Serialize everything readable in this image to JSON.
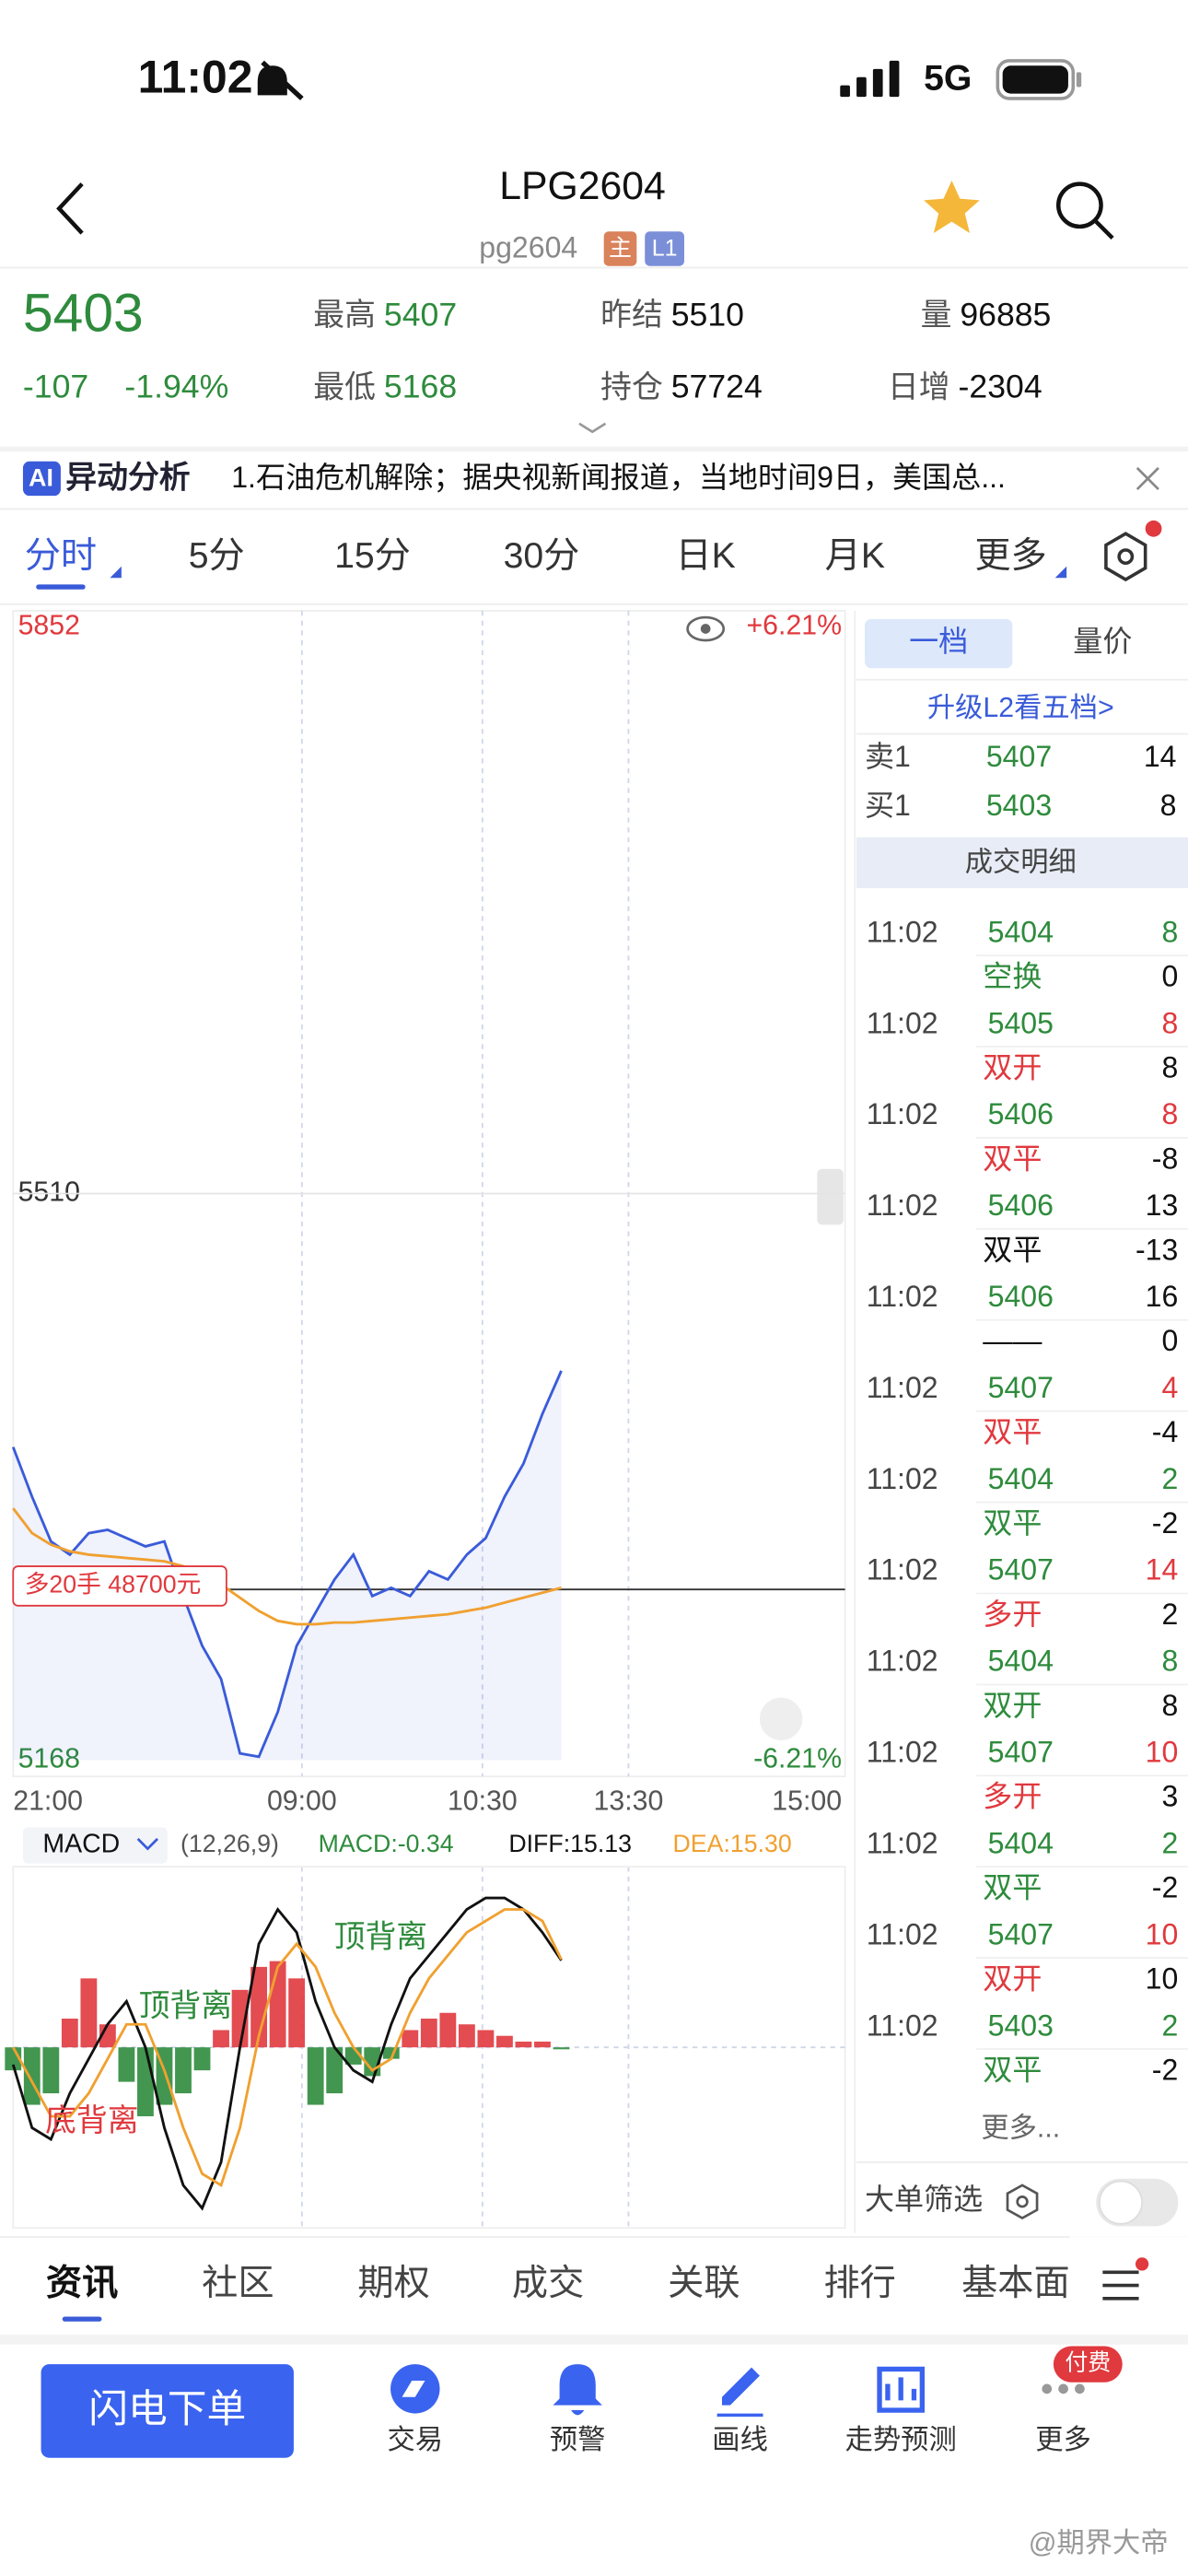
{
  "status_bar": {
    "time": "11:02",
    "network": "5G"
  },
  "header": {
    "title": "LPG2604",
    "code": "pg2604",
    "tags": [
      "主",
      "L1"
    ]
  },
  "quote": {
    "price": "5403",
    "change": "-107",
    "change_pct": "-1.94%",
    "color": "#2e8b3c",
    "stats": [
      {
        "label": "最高",
        "value": "5407",
        "color": "#2e8b3c"
      },
      {
        "label": "昨结",
        "value": "5510",
        "color": "#111111"
      },
      {
        "label": "量",
        "value": "96885",
        "color": "#111111"
      },
      {
        "label": "最低",
        "value": "5168",
        "color": "#2e8b3c"
      },
      {
        "label": "持仓",
        "value": "57724",
        "color": "#111111"
      },
      {
        "label": "日增",
        "value": "-2304",
        "color": "#111111"
      }
    ]
  },
  "news": {
    "badge": "AI",
    "label": "异动分析",
    "text": "1.石油危机解除；据央视新闻报道，当地时间9日，美国总..."
  },
  "period_tabs": {
    "items": [
      "分时",
      "5分",
      "15分",
      "30分",
      "日K",
      "月K",
      "更多"
    ],
    "selected": 0
  },
  "intraday": {
    "type": "line",
    "ylim": [
      5168,
      5852
    ],
    "yticks": [
      5168,
      5510,
      5852
    ],
    "y2lim": [
      -6.21,
      6.21
    ],
    "y2ticks": [
      {
        "value": -6.21,
        "label": "-6.21%"
      },
      {
        "value": 6.21,
        "label": "+6.21%"
      }
    ],
    "x_labels": [
      "21:00",
      "09:00",
      "10:30",
      "13:30",
      "15:00"
    ],
    "series": [
      {
        "color": "#3a5bd9",
        "values": [
          5357,
          5327,
          5300,
          5292,
          5305,
          5307,
          5302,
          5297,
          5300,
          5267,
          5237,
          5217,
          5172,
          5170,
          5197,
          5237,
          5257,
          5277,
          5292,
          5267,
          5272,
          5267,
          5282,
          5277,
          5292,
          5302,
          5327,
          5347,
          5377,
          5403
        ]
      },
      {
        "color": "#f0a030",
        "values": [
          5320,
          5305,
          5298,
          5294,
          5292,
          5291,
          5290,
          5289,
          5288,
          5285,
          5280,
          5274,
          5266,
          5258,
          5252,
          5250,
          5250,
          5251,
          5251,
          5252,
          5253,
          5254,
          5255,
          5256,
          5258,
          5260,
          5263,
          5266,
          5269,
          5272
        ]
      }
    ],
    "position": {
      "label": "多20手 48700元",
      "value": 5271
    }
  },
  "macd": {
    "type": "bar",
    "name": "MACD",
    "params": "(12,26,9)",
    "macd_label": "MACD:-0.34",
    "diff_label": "DIFF:15.13",
    "dea_label": "DEA:15.30",
    "ylim": [
      -30,
      30
    ],
    "values": [
      -4,
      -10,
      -8,
      5,
      12,
      4,
      -6,
      -12,
      -10,
      -8,
      -4,
      3,
      10,
      14,
      15,
      12,
      -10,
      -8,
      -3,
      -5,
      -2,
      3,
      5,
      6,
      4,
      3,
      2,
      1,
      1,
      -0.34
    ],
    "series": [
      {
        "color": "#111111",
        "values": [
          -3,
          -14,
          -16,
          -8,
          -2,
          4,
          8,
          0,
          -14,
          -24,
          -28,
          -20,
          0,
          18,
          24,
          20,
          8,
          0,
          -4,
          -6,
          4,
          12,
          16,
          20,
          24,
          26,
          26,
          24,
          20,
          15.13
        ]
      },
      {
        "color": "#f0a030",
        "values": [
          0,
          -6,
          -12,
          -12,
          -8,
          -2,
          4,
          4,
          -4,
          -14,
          -22,
          -24,
          -14,
          2,
          14,
          18,
          14,
          6,
          0,
          -4,
          -2,
          6,
          12,
          16,
          20,
          22,
          24,
          24,
          22,
          15.3
        ]
      }
    ],
    "annotations": [
      "顶背离",
      "顶背离",
      "底背离"
    ]
  },
  "orderbook": {
    "tabs": [
      "一档",
      "量价"
    ],
    "upgrade": "升级L2看五档>",
    "levels": [
      {
        "side": "卖1",
        "price": "5407",
        "volume": "14"
      },
      {
        "side": "买1",
        "price": "5403",
        "volume": "8"
      }
    ],
    "detail_title": "成交明细",
    "trades": [
      {
        "time": "11:02",
        "price": "5404",
        "vol": "8",
        "type": "空换",
        "chg": "0",
        "color": "#2e8b3c"
      },
      {
        "time": "11:02",
        "price": "5405",
        "vol": "8",
        "type": "双开",
        "chg": "8",
        "color": "#e0393e"
      },
      {
        "time": "11:02",
        "price": "5406",
        "vol": "8",
        "type": "双平",
        "chg": "-8",
        "color": "#e0393e"
      },
      {
        "time": "11:02",
        "price": "5406",
        "vol": "13",
        "type": "双平",
        "chg": "-13",
        "color": "#111111"
      },
      {
        "time": "11:02",
        "price": "5406",
        "vol": "16",
        "type": "——",
        "chg": "0",
        "color": "#111111"
      },
      {
        "time": "11:02",
        "price": "5407",
        "vol": "4",
        "type": "双平",
        "chg": "-4",
        "color": "#e0393e"
      },
      {
        "time": "11:02",
        "price": "5404",
        "vol": "2",
        "type": "双平",
        "chg": "-2",
        "color": "#2e8b3c"
      },
      {
        "time": "11:02",
        "price": "5407",
        "vol": "14",
        "type": "多开",
        "chg": "2",
        "color": "#e0393e"
      },
      {
        "time": "11:02",
        "price": "5404",
        "vol": "8",
        "type": "双开",
        "chg": "8",
        "color": "#2e8b3c"
      },
      {
        "time": "11:02",
        "price": "5407",
        "vol": "10",
        "type": "多开",
        "chg": "3",
        "color": "#e0393e"
      },
      {
        "time": "11:02",
        "price": "5404",
        "vol": "2",
        "type": "双平",
        "chg": "-2",
        "color": "#2e8b3c"
      },
      {
        "time": "11:02",
        "price": "5407",
        "vol": "10",
        "type": "双开",
        "chg": "10",
        "color": "#e0393e"
      },
      {
        "time": "11:02",
        "price": "5403",
        "vol": "2",
        "type": "双平",
        "chg": "-2",
        "color": "#2e8b3c"
      }
    ],
    "more": "更多...",
    "filter": "大单筛选"
  },
  "bottom_tabs": {
    "items": [
      "资讯",
      "社区",
      "期权",
      "成交",
      "关联",
      "排行",
      "基本面"
    ],
    "selected": 0
  },
  "action_bar": {
    "button": "闪电下单",
    "items": [
      "交易",
      "预警",
      "画线",
      "走势预测",
      "更多"
    ],
    "badge": "付费"
  },
  "watermark": "@期界大帝"
}
